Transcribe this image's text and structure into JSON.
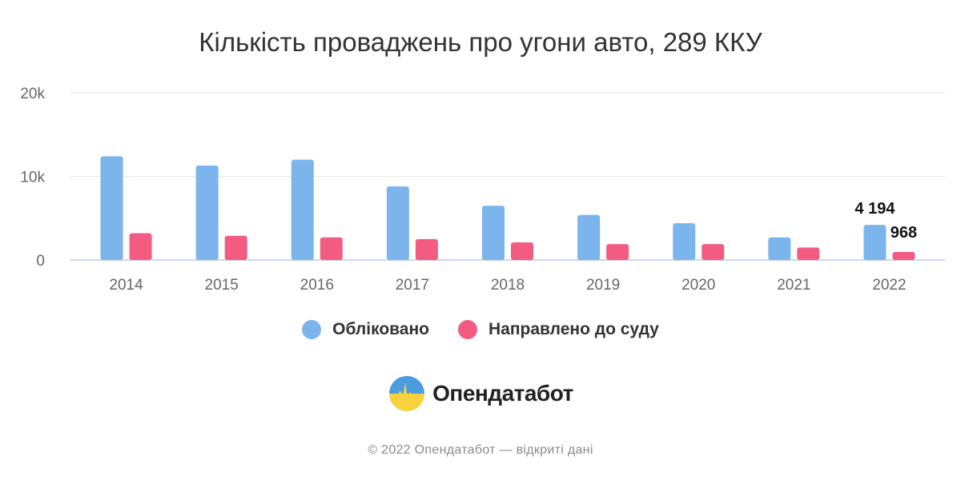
{
  "chart_data": {
    "type": "bar",
    "title": "Кількість проваджень про угони авто, 289 ККУ",
    "categories": [
      "2014",
      "2015",
      "2016",
      "2017",
      "2018",
      "2019",
      "2020",
      "2021",
      "2022"
    ],
    "series": [
      {
        "name": "Обліковано",
        "color": "#7cb5ec",
        "values": [
          12400,
          11300,
          12000,
          8800,
          6500,
          5400,
          4400,
          2700,
          4194
        ]
      },
      {
        "name": "Направлено до суду",
        "color": "#f15c80",
        "values": [
          3200,
          2900,
          2700,
          2500,
          2100,
          1900,
          1900,
          1500,
          968
        ]
      }
    ],
    "ylim": [
      0,
      20000
    ],
    "yticks": [
      {
        "value": 0,
        "label": "0"
      },
      {
        "value": 10000,
        "label": "10k"
      },
      {
        "value": 20000,
        "label": "20k"
      }
    ],
    "data_labels": [
      {
        "series": 0,
        "category": "2022",
        "text": "4 194"
      },
      {
        "series": 1,
        "category": "2022",
        "text": "968"
      }
    ],
    "xlabel": "",
    "ylabel": "",
    "grid": true,
    "legend_position": "bottom"
  },
  "brand": {
    "name": "Опендатабот",
    "logo_icon": "opendatabot-logo-icon"
  },
  "footer": "© 2022 Опендатабот — відкриті дані"
}
